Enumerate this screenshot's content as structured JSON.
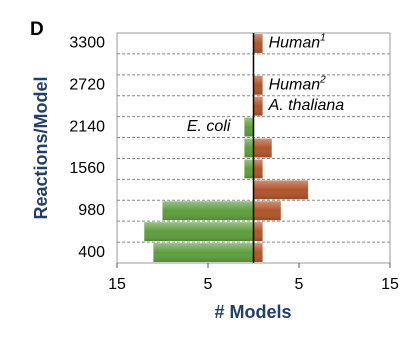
{
  "chart_data": {
    "type": "butterfly-bar",
    "panel_label": "D",
    "y_label": "Reactions/Model",
    "x_label": "# Models",
    "categories": [
      "3300",
      null,
      "2720",
      null,
      "2140",
      null,
      "1560",
      null,
      "980",
      null,
      "400"
    ],
    "series": [
      {
        "side": "left",
        "color": "#5e9e3e",
        "values": [
          0,
          0,
          0,
          0,
          1,
          1,
          1,
          0,
          10,
          12,
          11
        ]
      },
      {
        "side": "right",
        "color": "#b0552a",
        "values": [
          1,
          0,
          1,
          1,
          0,
          2,
          1,
          6,
          3,
          1,
          1
        ]
      }
    ],
    "annotations": [
      {
        "text": "Human",
        "sup": "1",
        "series": 1,
        "row": 0
      },
      {
        "text": "Human",
        "sup": "2",
        "series": 1,
        "row": 2
      },
      {
        "text": "A. thaliana",
        "series": 1,
        "row": 3
      },
      {
        "text": "E. coli",
        "series": 0,
        "row": 4
      }
    ],
    "xlim": [
      -15,
      15
    ],
    "xticks": [
      {
        "value": -15,
        "label": "15"
      },
      {
        "value": -5,
        "label": "5"
      },
      5,
      15
    ],
    "grid": true
  }
}
